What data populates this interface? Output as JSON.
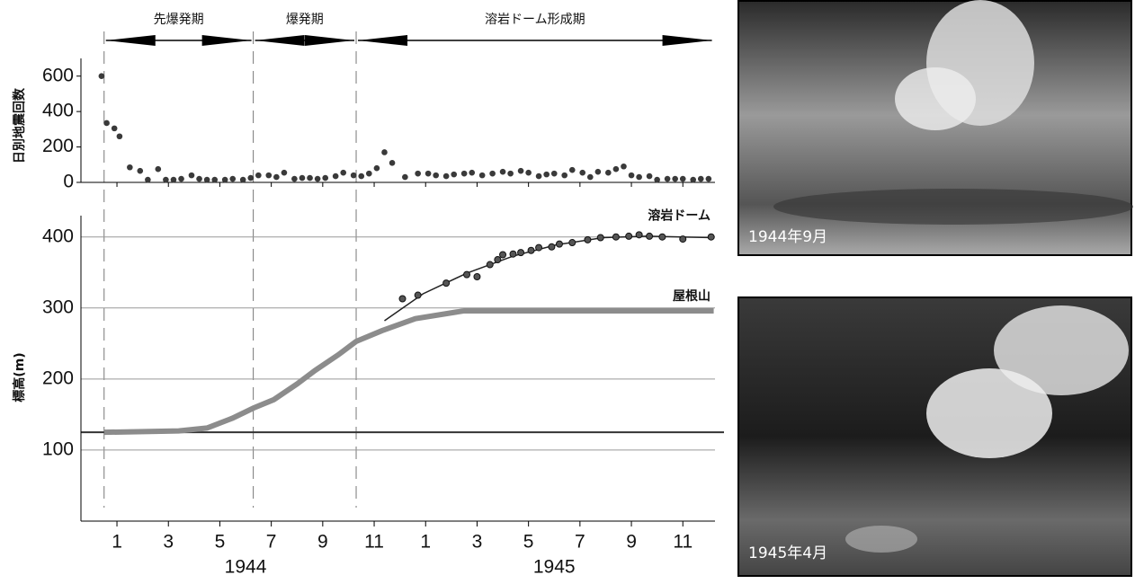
{
  "chart_data": [
    {
      "type": "scatter",
      "ylabel": "日別地震回数",
      "periods": {
        "labels": [
          "先爆発期",
          "爆発期",
          "溶岩ドーム形成期"
        ],
        "bounds": [
          0.5,
          6.3,
          10.3,
          24.2
        ]
      },
      "color": "#3a3a3a",
      "xlim": [
        -0.4,
        24.25
      ],
      "ylim": [
        0,
        700
      ],
      "yticks": [
        0,
        200,
        400,
        600
      ],
      "x": [
        0.4,
        0.6,
        0.9,
        1.1,
        1.5,
        1.9,
        2.2,
        2.6,
        2.9,
        3.2,
        3.5,
        3.9,
        4.2,
        4.5,
        4.8,
        5.2,
        5.5,
        5.9,
        6.2,
        6.5,
        6.9,
        7.2,
        7.5,
        7.9,
        8.2,
        8.5,
        8.8,
        9.1,
        9.5,
        9.8,
        10.2,
        10.5,
        10.8,
        11.1,
        11.4,
        11.7,
        12.2,
        12.7,
        13.1,
        13.4,
        13.8,
        14.1,
        14.5,
        14.8,
        15.2,
        15.6,
        16.0,
        16.3,
        16.7,
        17.0,
        17.4,
        17.7,
        18.0,
        18.4,
        18.7,
        19.1,
        19.4,
        19.7,
        20.1,
        20.4,
        20.7,
        21.0,
        21.3,
        21.7,
        22.0,
        22.4,
        22.7,
        23.0,
        23.4,
        23.7,
        24.0
      ],
      "values": [
        600,
        335,
        305,
        260,
        85,
        65,
        15,
        75,
        15,
        15,
        20,
        40,
        20,
        15,
        15,
        15,
        20,
        15,
        25,
        40,
        40,
        30,
        55,
        20,
        25,
        25,
        20,
        25,
        35,
        55,
        40,
        35,
        50,
        80,
        170,
        110,
        30,
        50,
        50,
        40,
        35,
        45,
        50,
        55,
        40,
        50,
        60,
        50,
        65,
        55,
        35,
        45,
        50,
        40,
        70,
        55,
        30,
        60,
        55,
        75,
        90,
        40,
        30,
        35,
        15,
        20,
        20,
        20,
        15,
        20,
        20
      ]
    },
    {
      "type": "line",
      "ylabel": "標高(m)",
      "xlim": [
        -0.4,
        24.25
      ],
      "ylim": [
        0,
        430
      ],
      "yticks": [
        100,
        200,
        300,
        400
      ],
      "grid": true,
      "baseline": 125,
      "xticks": [
        1,
        3,
        5,
        7,
        9,
        11,
        {
          "value": 13,
          "label": "1"
        },
        {
          "value": 15,
          "label": "3"
        },
        {
          "value": 17,
          "label": "5"
        },
        {
          "value": 19,
          "label": "7"
        },
        {
          "value": 21,
          "label": "9"
        },
        {
          "value": 23,
          "label": "11"
        }
      ],
      "years": [
        {
          "value": 6,
          "label": "1944"
        },
        {
          "value": 18,
          "label": "1945"
        }
      ],
      "series": [
        {
          "name": "屋根山",
          "color": "#8c8c8c",
          "x": [
            0.5,
            3.4,
            4.5,
            5.5,
            6.3,
            7.1,
            8.0,
            8.7,
            9.6,
            10.3,
            11.3,
            12.6,
            14.5,
            24.2
          ],
          "values": [
            125,
            127,
            131,
            145,
            159,
            171,
            193,
            212,
            234,
            253,
            268,
            285,
            296,
            296
          ]
        },
        {
          "name": "溶岩ドーム",
          "color": "#222222",
          "x": [
            12.1,
            12.7,
            13.8,
            14.6,
            15.0,
            15.5,
            15.8,
            16.0,
            16.4,
            16.7,
            17.1,
            17.4,
            17.9,
            18.2,
            18.7,
            19.3,
            19.8,
            20.4,
            20.9,
            21.3,
            21.7,
            22.2,
            23.0,
            24.1
          ],
          "values": [
            313,
            318,
            335,
            347,
            344,
            361,
            368,
            375,
            376,
            378,
            381,
            385,
            386,
            390,
            392,
            396,
            399,
            400,
            401,
            403,
            401,
            400,
            397,
            400
          ],
          "fit_x": [
            11.4,
            12.9,
            14.6,
            16.4,
            18.1,
            19.9,
            21.6,
            24.2
          ],
          "fit_values": [
            282,
            320,
            349,
            373,
            389,
            399,
            401,
            399
          ]
        }
      ]
    }
  ],
  "photos": [
    {
      "caption": "1944年9月"
    },
    {
      "caption": "1945年4月"
    }
  ]
}
